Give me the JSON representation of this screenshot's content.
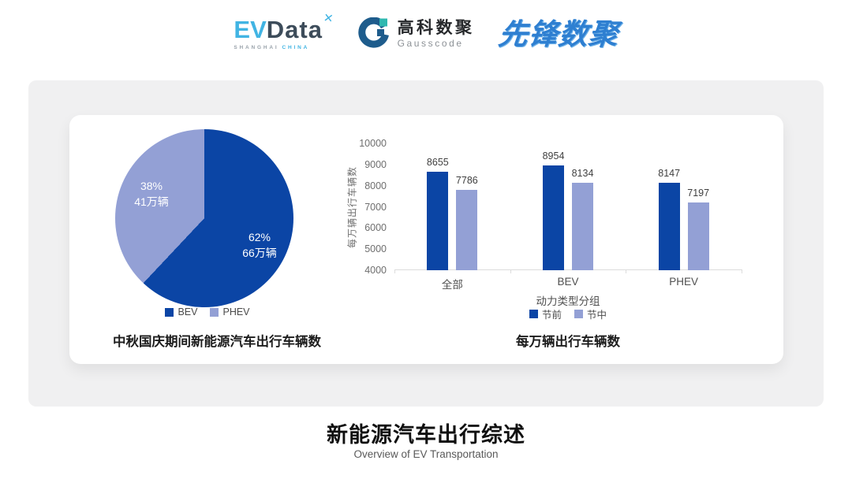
{
  "header": {
    "evdata": {
      "ev": "EV",
      "data": "Data",
      "mark": "✕",
      "sub_left": "SHANGHAI",
      "sub_right": "CHINA"
    },
    "gausscode": {
      "cn": "高科数聚",
      "en": "Gausscode"
    },
    "pioneer": {
      "text": "先锋数聚"
    }
  },
  "icons": {
    "evdata_mark": "x-star-icon",
    "gausscode_mark": "g-ring-icon"
  },
  "colors": {
    "primary_blue": "#0B45A5",
    "light_periwinkle": "#93A0D5",
    "panel_gray": "#F0F0F1",
    "evdata_blue": "#41B4E3",
    "evdata_dark": "#3D4C5A",
    "gauss_navy": "#1E5C8C",
    "gauss_teal": "#2FB8B0",
    "pioneer_blue": "#2E7FD1"
  },
  "footer": {
    "title": "新能源汽车出行综述",
    "subtitle": "Overview of EV Transportation"
  },
  "chart_data": [
    {
      "type": "pie",
      "title": "中秋国庆期间新能源汽车出行车辆数",
      "start_angle": "top",
      "direction": "clockwise",
      "slices": [
        {
          "label": "BEV",
          "percent": 62,
          "value_label": "66万辆",
          "color": "#0B45A5"
        },
        {
          "label": "PHEV",
          "percent": 38,
          "value_label": "41万辆",
          "color": "#93A0D5"
        }
      ],
      "legend_position": "bottom"
    },
    {
      "type": "bar",
      "title": "每万辆出行车辆数",
      "categories": [
        "全部",
        "BEV",
        "PHEV"
      ],
      "series": [
        {
          "name": "节前",
          "color": "#0B45A5",
          "values": [
            8655,
            8954,
            8147
          ]
        },
        {
          "name": "节中",
          "color": "#93A0D5",
          "values": [
            7786,
            8134,
            7197
          ]
        }
      ],
      "ylabel": "每万辆出行车辆数",
      "xlabel": "动力类型分组",
      "ylim": [
        4000,
        10000
      ],
      "yticks": [
        4000,
        5000,
        6000,
        7000,
        8000,
        9000,
        10000
      ],
      "grid": false,
      "legend_position": "bottom"
    }
  ]
}
